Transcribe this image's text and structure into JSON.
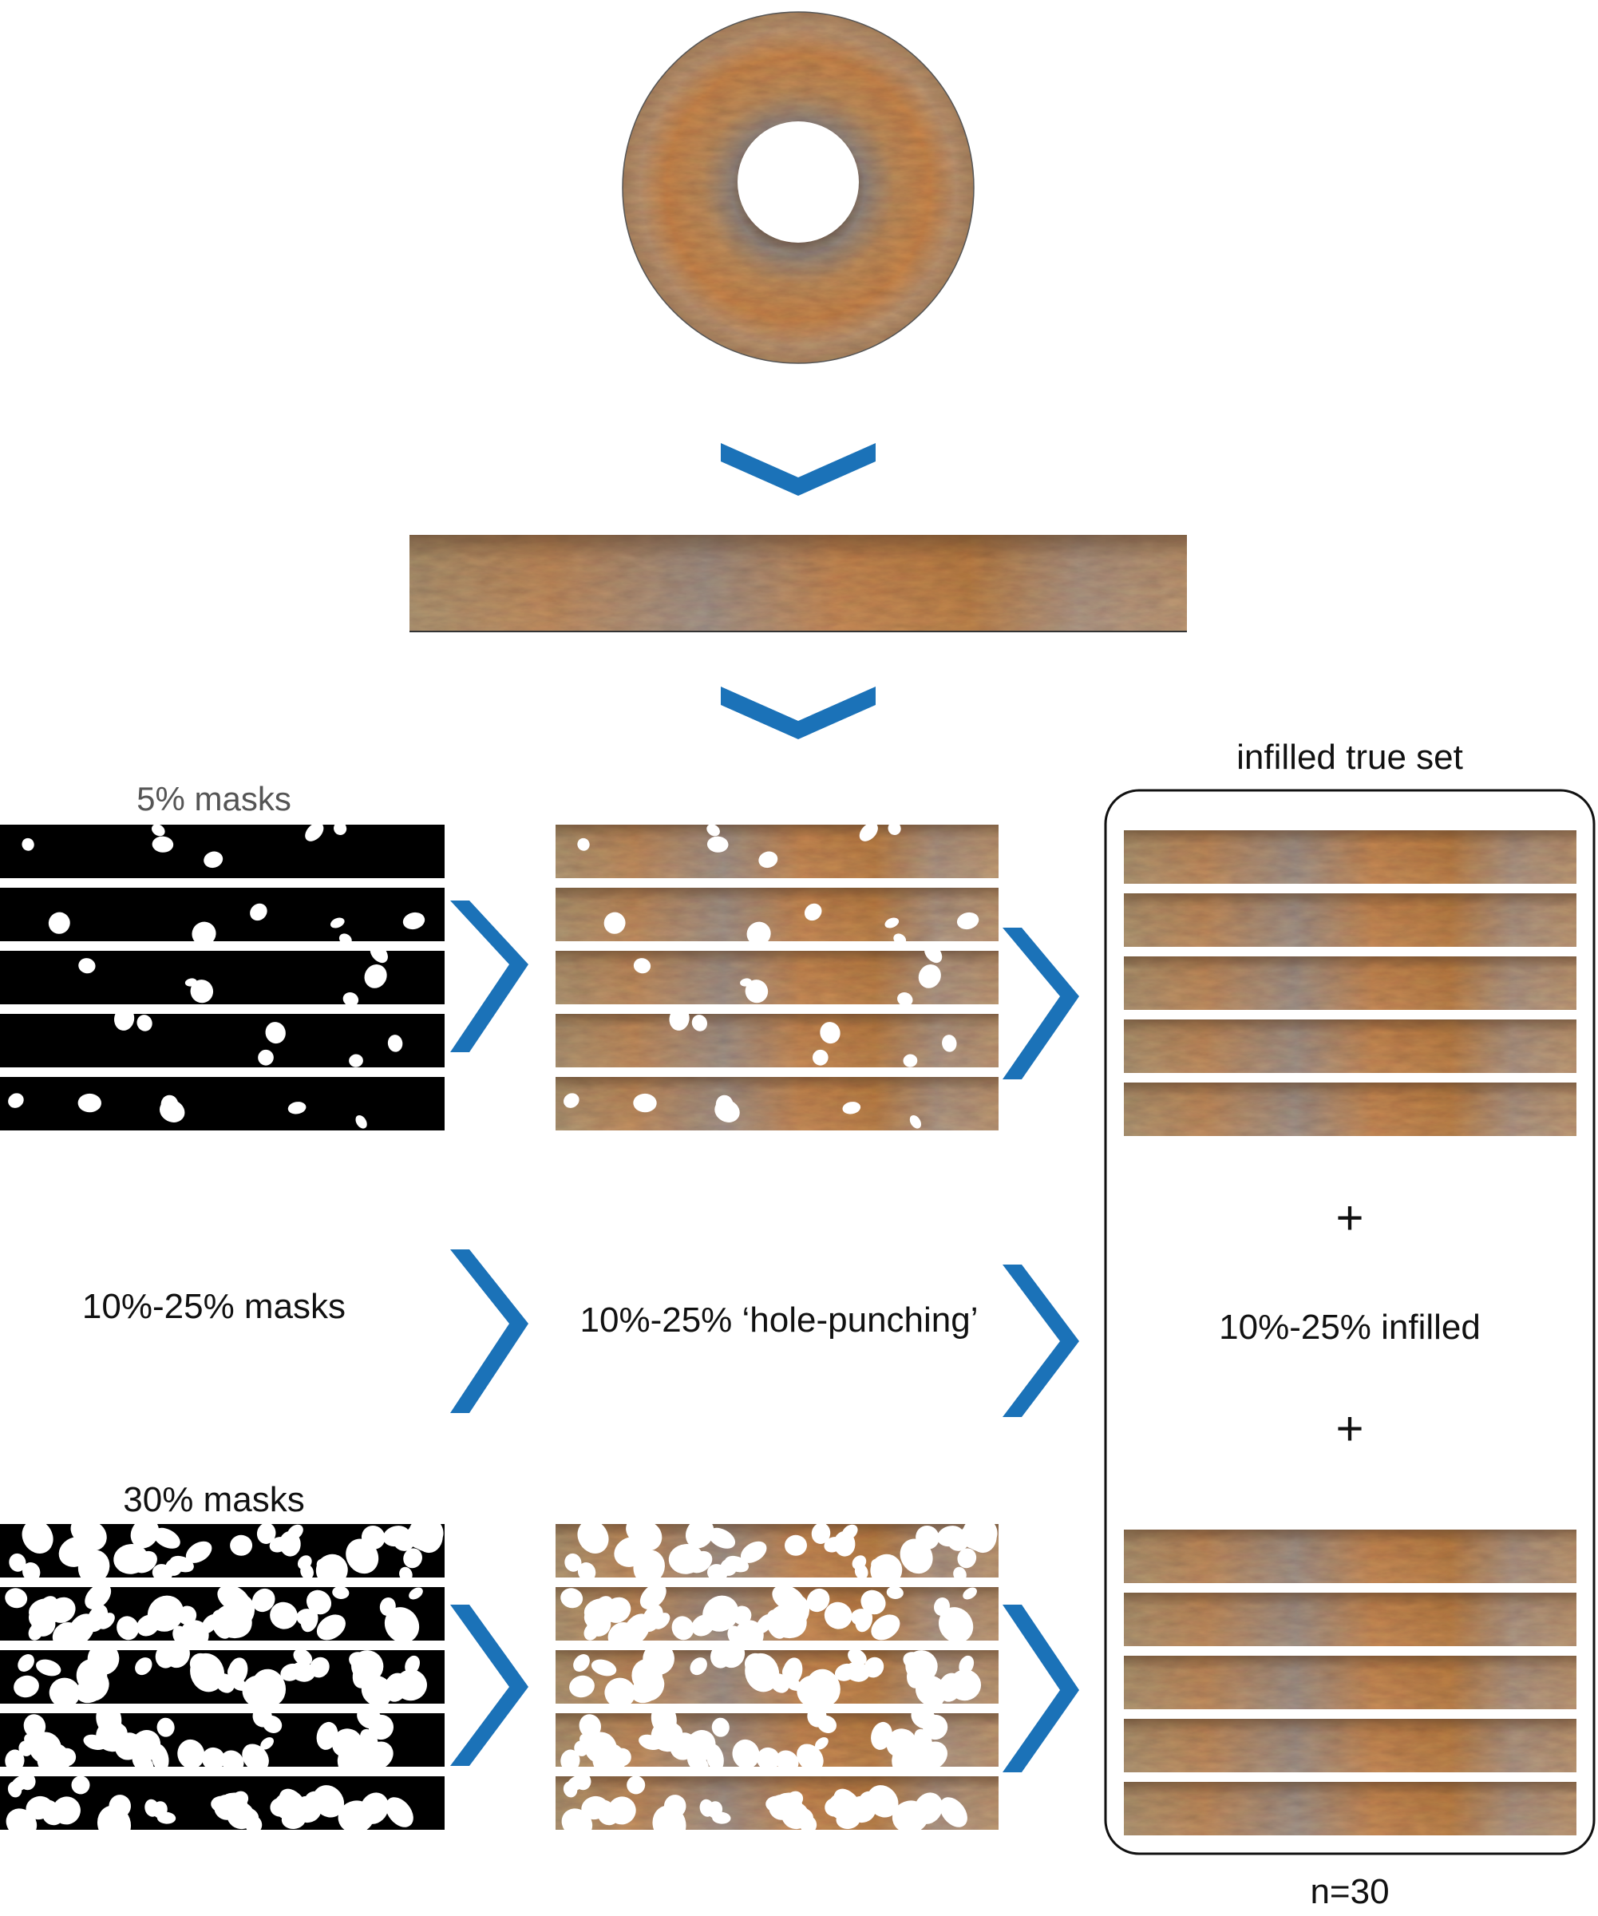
{
  "labels": {
    "masks_5": "5% masks",
    "masks_10_25": "10%-25% masks",
    "masks_30": "30% masks",
    "hole_punching": "10%-25% ‘hole-punching’",
    "infilled_true_set": "infilled true set",
    "plus_top": "+",
    "infilled_10_25": "10%-25% infilled",
    "plus_bottom": "+",
    "n_count": "n=30"
  },
  "colors": {
    "arrow": "#1b72b8",
    "mask_bg": "#000000",
    "hole": "#ffffff",
    "iris_base": "#c58a5a",
    "iris_dark": "#7a5a3c",
    "iris_light": "#d9b286",
    "iris_grey": "#9a8f86",
    "iris_orange": "#d6884a"
  },
  "icons": [
    "chevron-down-icon",
    "chevron-right-icon"
  ],
  "structure": {
    "strips_per_stack": 5,
    "stack_rows": [
      "5% masks",
      "30% masks"
    ],
    "panel": "infilled true set"
  }
}
